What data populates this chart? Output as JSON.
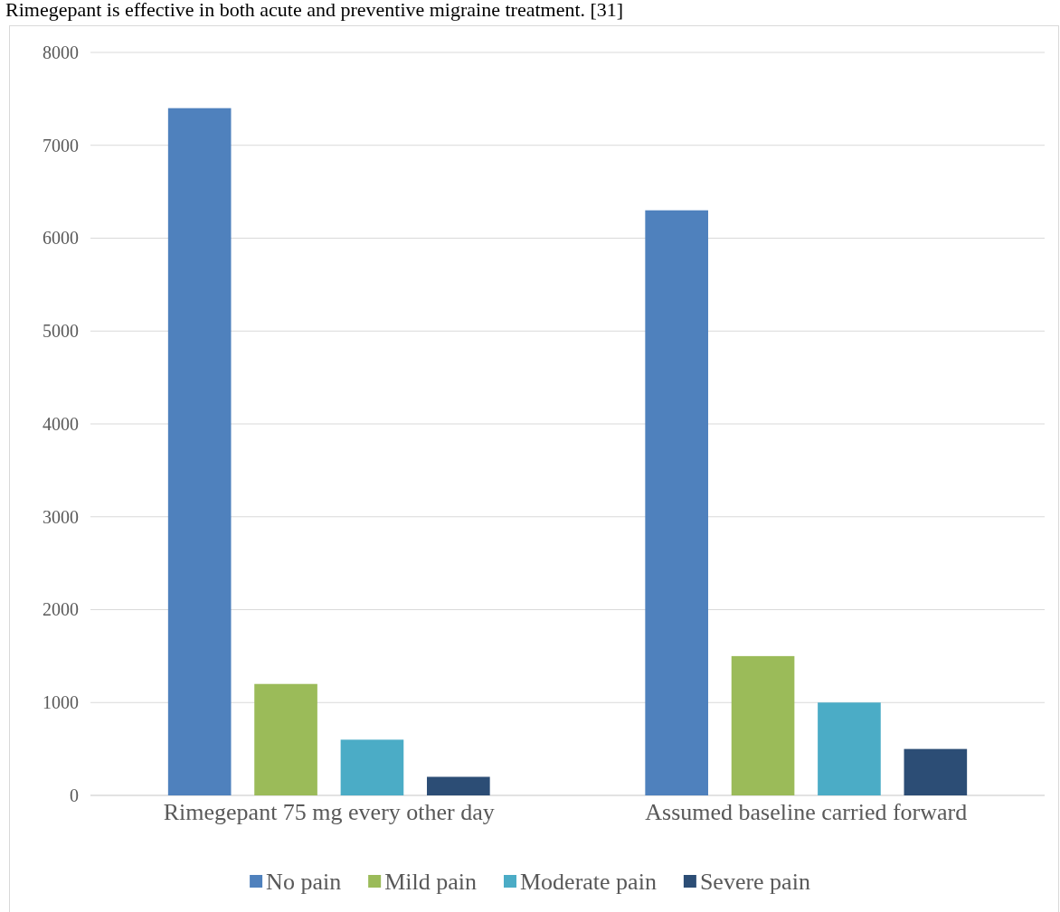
{
  "chart_data": {
    "type": "bar",
    "title": "Rimegepant is effective in both acute and preventive migraine treatment. [31]",
    "categories": [
      "Rimegepant 75 mg every other day",
      "Assumed baseline carried forward"
    ],
    "series": [
      {
        "name": "No pain",
        "color": "#4f81bd",
        "values": [
          7400,
          6300
        ]
      },
      {
        "name": "Mild pain",
        "color": "#9bbb59",
        "values": [
          1200,
          1500
        ]
      },
      {
        "name": "Moderate pain",
        "color": "#4bacc6",
        "values": [
          600,
          1000
        ]
      },
      {
        "name": "Severe pain",
        "color": "#2c4d75",
        "values": [
          200,
          500
        ]
      }
    ],
    "ylim": [
      0,
      8000
    ],
    "yticks": [
      0,
      1000,
      2000,
      3000,
      4000,
      5000,
      6000,
      7000,
      8000
    ],
    "grid": "y",
    "legend": "bottom"
  }
}
